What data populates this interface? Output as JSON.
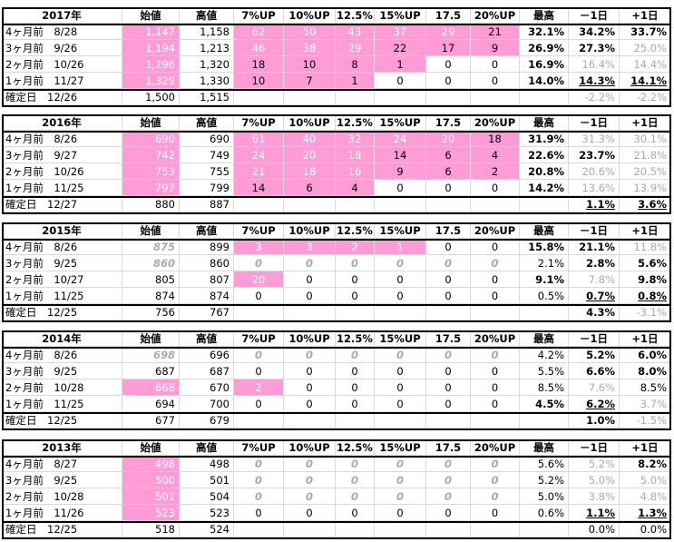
{
  "headers": [
    "始値",
    "高値",
    "7%UP",
    "10%UP",
    "12.5%",
    "15%UP",
    "17.5",
    "20%UP",
    "最高",
    "－1日",
    "+1日"
  ],
  "sections": [
    {
      "year": "2017年",
      "rows": [
        {
          "label": "4ヶ月前　8/28",
          "cells": [
            "1,147",
            "1,158",
            "62",
            "50",
            "43",
            "37",
            "29",
            "21",
            "32.1%",
            "34.2%",
            "33.7%"
          ]
        },
        {
          "label": "3ヶ月前　9/26",
          "cells": [
            "1,194",
            "1,213",
            "46",
            "38",
            "29",
            "22",
            "17",
            "9",
            "26.9%",
            "27.3%",
            "25.0%"
          ]
        },
        {
          "label": "2ヶ月前　10/26",
          "cells": [
            "1,296",
            "1,320",
            "18",
            "10",
            "8",
            "1",
            "0",
            "0",
            "16.9%",
            "16.4%",
            "14.4%"
          ]
        },
        {
          "label": "1ヶ月前　11/27",
          "cells": [
            "1,329",
            "1,330",
            "10",
            "7",
            "1",
            "0",
            "0",
            "0",
            "14.0%",
            "14.3%",
            "14.1%"
          ]
        },
        {
          "label": "確定日　12/26",
          "cells": [
            "1,500",
            "1,515",
            "",
            "",
            "",
            "",
            "",
            "",
            "",
            "-2.2%",
            "-2.2%"
          ]
        }
      ]
    },
    {
      "year": "2016年",
      "rows": [
        {
          "label": "4ヶ月前　8/26",
          "cells": [
            "690",
            "690",
            "61",
            "40",
            "32",
            "24",
            "20",
            "18",
            "31.9%",
            "31.3%",
            "30.1%"
          ]
        },
        {
          "label": "3ヶ月前　9/27",
          "cells": [
            "742",
            "749",
            "24",
            "20",
            "18",
            "14",
            "6",
            "4",
            "22.6%",
            "23.7%",
            "21.8%"
          ]
        },
        {
          "label": "2ヶ月前　10/26",
          "cells": [
            "753",
            "755",
            "21",
            "18",
            "16",
            "9",
            "6",
            "2",
            "20.8%",
            "20.6%",
            "20.5%"
          ]
        },
        {
          "label": "1ヶ月前　11/25",
          "cells": [
            "797",
            "799",
            "14",
            "6",
            "4",
            "0",
            "0",
            "0",
            "14.2%",
            "13.6%",
            "13.9%"
          ]
        },
        {
          "label": "確定日　12/27",
          "cells": [
            "880",
            "887",
            "",
            "",
            "",
            "",
            "",
            "",
            "",
            "1.1%",
            "3.6%"
          ]
        }
      ]
    },
    {
      "year": "2015年",
      "rows": [
        {
          "label": "4ヶ月前　8/26",
          "cells": [
            "875",
            "899",
            "3",
            "3",
            "2",
            "1",
            "0",
            "0",
            "15.8%",
            "21.1%",
            "11.8%"
          ]
        },
        {
          "label": "3ヶ月前　9/25",
          "cells": [
            "860",
            "860",
            "0",
            "0",
            "0",
            "0",
            "0",
            "0",
            "2.1%",
            "2.8%",
            "5.6%"
          ]
        },
        {
          "label": "2ヶ月前　10/27",
          "cells": [
            "805",
            "807",
            "20",
            "0",
            "0",
            "0",
            "0",
            "0",
            "9.1%",
            "7.8%",
            "9.8%"
          ]
        },
        {
          "label": "1ヶ月前　11/25",
          "cells": [
            "874",
            "874",
            "0",
            "0",
            "0",
            "0",
            "0",
            "0",
            "0.5%",
            "0.7%",
            "0.8%"
          ]
        },
        {
          "label": "確定日　12/25",
          "cells": [
            "756",
            "767",
            "",
            "",
            "",
            "",
            "",
            "",
            "",
            "4.3%",
            "-3.1%"
          ]
        }
      ]
    },
    {
      "year": "2014年",
      "rows": [
        {
          "label": "4ヶ月前　8/26",
          "cells": [
            "698",
            "696",
            "0",
            "0",
            "0",
            "0",
            "0",
            "0",
            "4.2%",
            "5.2%",
            "6.0%"
          ]
        },
        {
          "label": "3ヶ月前　9/25",
          "cells": [
            "687",
            "687",
            "0",
            "0",
            "0",
            "0",
            "0",
            "0",
            "5.5%",
            "6.6%",
            "8.0%"
          ]
        },
        {
          "label": "2ヶ月前　10/28",
          "cells": [
            "668",
            "670",
            "2",
            "0",
            "0",
            "0",
            "0",
            "0",
            "8.5%",
            "7.6%",
            "8.5%"
          ]
        },
        {
          "label": "1ヶ月前　11/25",
          "cells": [
            "694",
            "700",
            "0",
            "0",
            "0",
            "0",
            "0",
            "0",
            "4.5%",
            "6.2%",
            "3.7%"
          ]
        },
        {
          "label": "確定日　12/25",
          "cells": [
            "677",
            "679",
            "",
            "",
            "",
            "",
            "",
            "",
            "",
            "1.0%",
            "-1.5%"
          ]
        }
      ]
    },
    {
      "year": "2013年",
      "rows": [
        {
          "label": "4ヶ月前　8/27",
          "cells": [
            "498",
            "498",
            "0",
            "0",
            "0",
            "0",
            "0",
            "0",
            "5.6%",
            "5.2%",
            "8.2%"
          ]
        },
        {
          "label": "3ヶ月前　9/25",
          "cells": [
            "500",
            "501",
            "0",
            "0",
            "0",
            "0",
            "0",
            "0",
            "5.2%",
            "5.0%",
            "5.0%"
          ]
        },
        {
          "label": "2ヶ月前　10/28",
          "cells": [
            "501",
            "504",
            "0",
            "0",
            "0",
            "0",
            "0",
            "0",
            "5.0%",
            "3.8%",
            "4.8%"
          ]
        },
        {
          "label": "1ヶ月前　11/26",
          "cells": [
            "523",
            "523",
            "0",
            "0",
            "0",
            "0",
            "0",
            "0",
            "0.6%",
            "1.1%",
            "1.3%"
          ]
        },
        {
          "label": "確定日　12/25",
          "cells": [
            "518",
            "524",
            "",
            "",
            "",
            "",
            "",
            "",
            "",
            "0.0%",
            "0.0%"
          ]
        }
      ]
    }
  ]
}
